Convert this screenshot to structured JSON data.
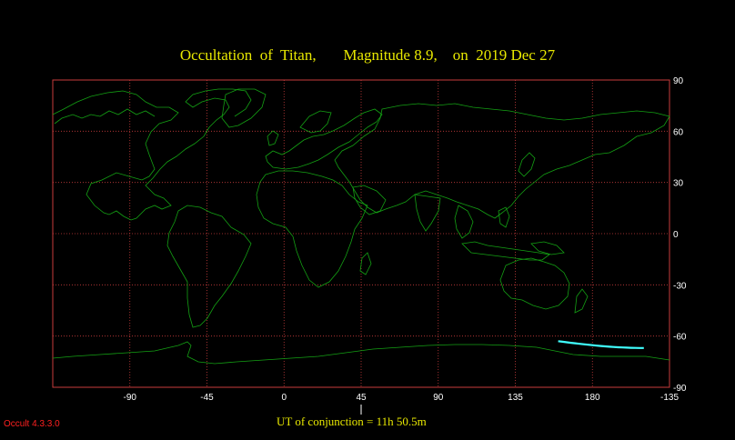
{
  "title": "Occultation  of  Titan,       Magnitude 8.9,    on  2019 Dec 27",
  "conjunction_label": "UT of conjunction = 11h 50.5m",
  "version_label": "Occult 4.3.3.0",
  "map": {
    "projection": "equirectangular",
    "longitude_range": [
      -135,
      225
    ],
    "latitude_range": [
      -90,
      90
    ],
    "longitude_ticks": [
      "-90",
      "-45",
      "0",
      "45",
      "90",
      "135",
      "180",
      "-135"
    ],
    "latitude_ticks": [
      "90",
      "60",
      "30",
      "0",
      "-30",
      "-60",
      "-90"
    ],
    "conjunction_marker_longitude": 45,
    "occultation_track": {
      "longitude_range": [
        160,
        210
      ],
      "latitude_range": [
        -63,
        -67
      ]
    }
  },
  "colors": {
    "background": "#000000",
    "grid": "#c83c3c",
    "coastline": "#14a014",
    "track": "#40ffff",
    "title": "#e8e800",
    "tick_labels": "#ffffff",
    "version": "#ff2020"
  }
}
